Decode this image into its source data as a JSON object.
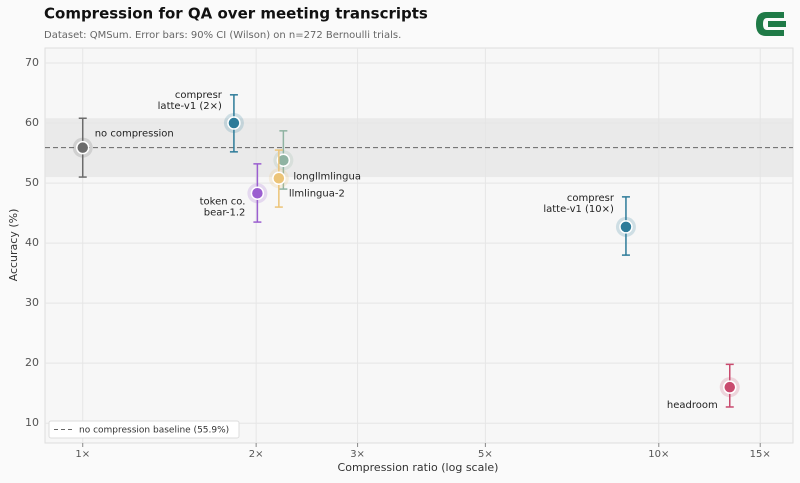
{
  "chart_data": {
    "type": "scatter",
    "title": "Compression for QA over meeting transcripts",
    "subtitle": "Dataset: QMSum. Error bars: 90% CI (Wilson) on n=272 Bernoulli trials.",
    "x_label": "Compression ratio  (log scale)",
    "y_label": "Accuracy  (%)",
    "xscale": "log",
    "xlim": [
      0.86,
      17.1
    ],
    "xticks": [
      {
        "value": 1,
        "label": "1×"
      },
      {
        "value": 2,
        "label": "2×"
      },
      {
        "value": 3,
        "label": "3×"
      },
      {
        "value": 5,
        "label": "5×"
      },
      {
        "value": 10,
        "label": "10×"
      },
      {
        "value": 15,
        "label": "15×"
      }
    ],
    "ylim": [
      6.7,
      72.5
    ],
    "yticks": [
      10,
      20,
      30,
      40,
      50,
      60,
      70
    ],
    "grid": true,
    "baseline": {
      "value": 55.9,
      "band": [
        51.0,
        60.8
      ],
      "legend": "no compression baseline (55.9%)"
    },
    "legend_position": "lower left",
    "series": [
      {
        "label": [
          "no compression"
        ],
        "color": "#6b6b6b",
        "x": [
          1
        ],
        "values": [
          55.9
        ],
        "ci_low": [
          51.0
        ],
        "ci_high": [
          60.8
        ]
      },
      {
        "label": [
          "compresr",
          "latte-v1 (2×)"
        ],
        "color": "#2d7b99",
        "x": [
          1.83
        ],
        "values": [
          60.0
        ],
        "ci_low": [
          55.2
        ],
        "ci_high": [
          64.7
        ]
      },
      {
        "label": [
          "longllmlingua"
        ],
        "color": "#8fb3a2",
        "x": [
          2.23
        ],
        "values": [
          53.8
        ],
        "ci_low": [
          49.0
        ],
        "ci_high": [
          58.7
        ]
      },
      {
        "label": [
          "llmlingua-2"
        ],
        "color": "#ecc478",
        "x": [
          2.19
        ],
        "values": [
          50.8
        ],
        "ci_low": [
          46.0
        ],
        "ci_high": [
          55.5
        ]
      },
      {
        "label": [
          "token co.",
          "bear-1.2"
        ],
        "color": "#9b5fd0",
        "x": [
          2.01
        ],
        "values": [
          48.3
        ],
        "ci_low": [
          43.5
        ],
        "ci_high": [
          53.2
        ]
      },
      {
        "label": [
          "compresr",
          "latte-v1 (10×)"
        ],
        "color": "#2d7b99",
        "x": [
          8.77
        ],
        "values": [
          42.7
        ],
        "ci_low": [
          38.0
        ],
        "ci_high": [
          47.7
        ]
      },
      {
        "label": [
          "headroom"
        ],
        "color": "#c94a6e",
        "x": [
          13.28
        ],
        "values": [
          16.0
        ],
        "ci_low": [
          12.7
        ],
        "ci_high": [
          19.8
        ]
      }
    ]
  }
}
